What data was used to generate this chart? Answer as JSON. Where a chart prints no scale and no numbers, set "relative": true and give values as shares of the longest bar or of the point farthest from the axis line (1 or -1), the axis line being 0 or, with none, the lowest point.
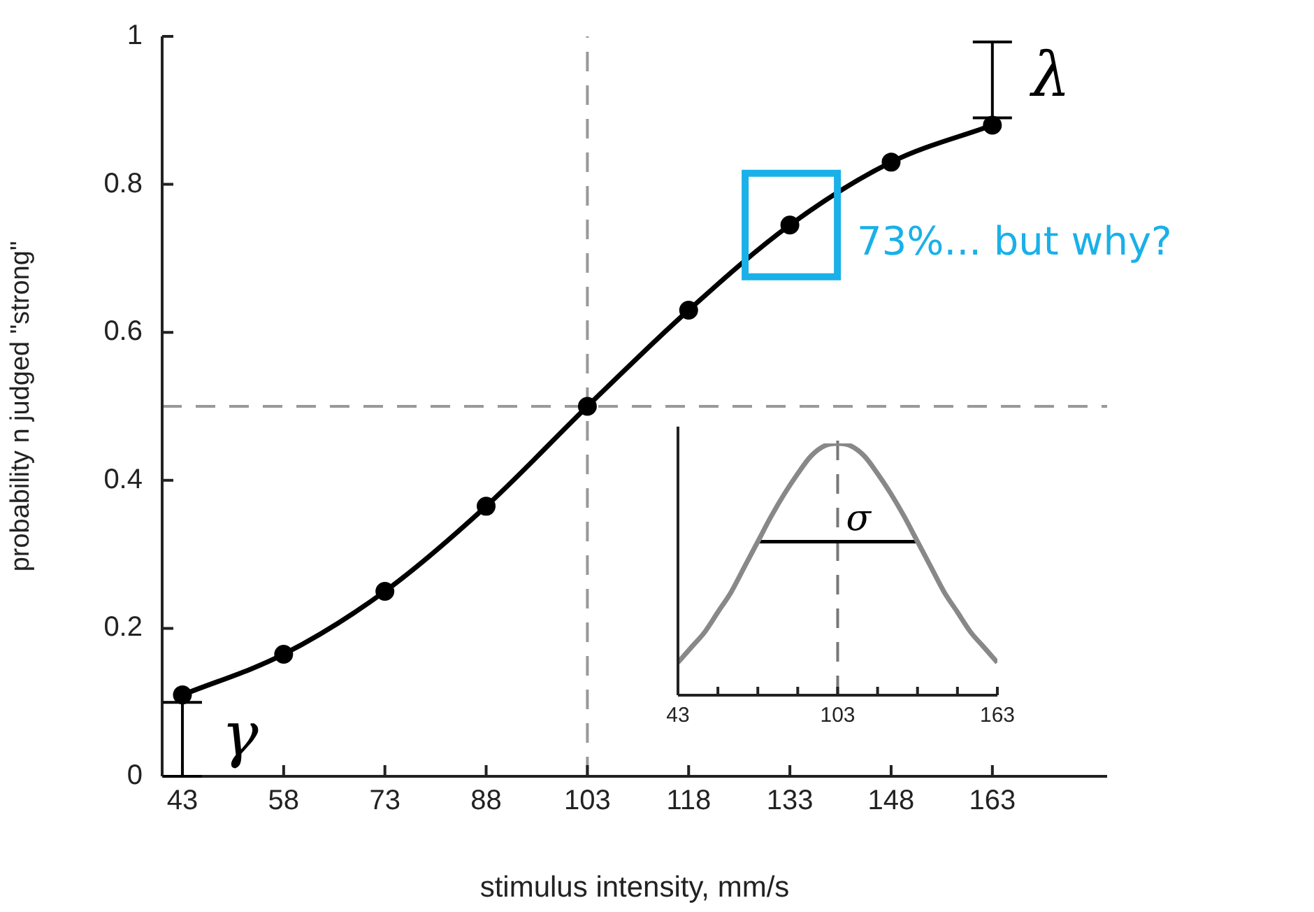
{
  "chart_data": [
    {
      "type": "line",
      "xlabel": "stimulus intensity, mm/s",
      "ylabel": "probability n judged \"strong\"",
      "x": [
        43,
        58,
        73,
        88,
        103,
        118,
        133,
        148,
        163
      ],
      "series": [
        {
          "color": "#000000",
          "values": [
            0.11,
            0.165,
            0.25,
            0.365,
            0.5,
            0.63,
            0.745,
            0.83,
            0.88
          ]
        }
      ],
      "xlim": [
        40,
        180
      ],
      "xticks": [
        43,
        58,
        73,
        88,
        103,
        118,
        133,
        148,
        163
      ],
      "ylim": [
        0,
        1
      ],
      "yticks": [
        0,
        0.2,
        0.4,
        0.6,
        0.8,
        1
      ],
      "grid": false,
      "legend": false,
      "marker": "circle",
      "line_style": "solid",
      "ref_lines": [
        {
          "axis": "x",
          "value": 103,
          "color": "#999999",
          "line_style": "dashed"
        },
        {
          "axis": "y",
          "value": 0.5,
          "color": "#999999",
          "line_style": "dashed"
        }
      ],
      "annotations": [
        {
          "text": "γ",
          "x": 43,
          "y": 0.1
        },
        {
          "text": "λ",
          "x": 163,
          "y": 0.89
        },
        {
          "text": "73%... but why?",
          "x": 133,
          "y": 0.745
        }
      ]
    },
    {
      "type": "line",
      "relative": true,
      "x": [
        43,
        48,
        53,
        58,
        63,
        68,
        73,
        78,
        83,
        88,
        93,
        98,
        103,
        108,
        113,
        118,
        123,
        128,
        133,
        138,
        143,
        148,
        153,
        158,
        163
      ],
      "series": [
        {
          "color": "#888888",
          "values": [
            0.13,
            0.19,
            0.25,
            0.33,
            0.41,
            0.51,
            0.61,
            0.71,
            0.8,
            0.88,
            0.95,
            0.99,
            1,
            0.99,
            0.95,
            0.88,
            0.8,
            0.71,
            0.61,
            0.51,
            0.41,
            0.33,
            0.25,
            0.19,
            0.13
          ]
        },
        {
          "color": "#000000",
          "x": [
            73,
            133
          ],
          "values": [
            0.61,
            0.61
          ]
        }
      ],
      "xlim": [
        43,
        163
      ],
      "xticks": [
        43,
        {
          "value": 58,
          "label": null
        },
        {
          "value": 73,
          "label": null
        },
        {
          "value": 88,
          "label": null
        },
        103,
        {
          "value": 118,
          "label": null
        },
        {
          "value": 133,
          "label": null
        },
        {
          "value": 148,
          "label": null
        },
        163
      ],
      "grid": false,
      "legend": false,
      "marker": "none",
      "line_style": "solid",
      "ref_lines": [
        {
          "axis": "x",
          "value": 103,
          "color": "#777777",
          "line_style": "dashed"
        }
      ],
      "annotations": [
        {
          "text": "σ",
          "x": 103,
          "y": 0.61
        }
      ]
    }
  ]
}
